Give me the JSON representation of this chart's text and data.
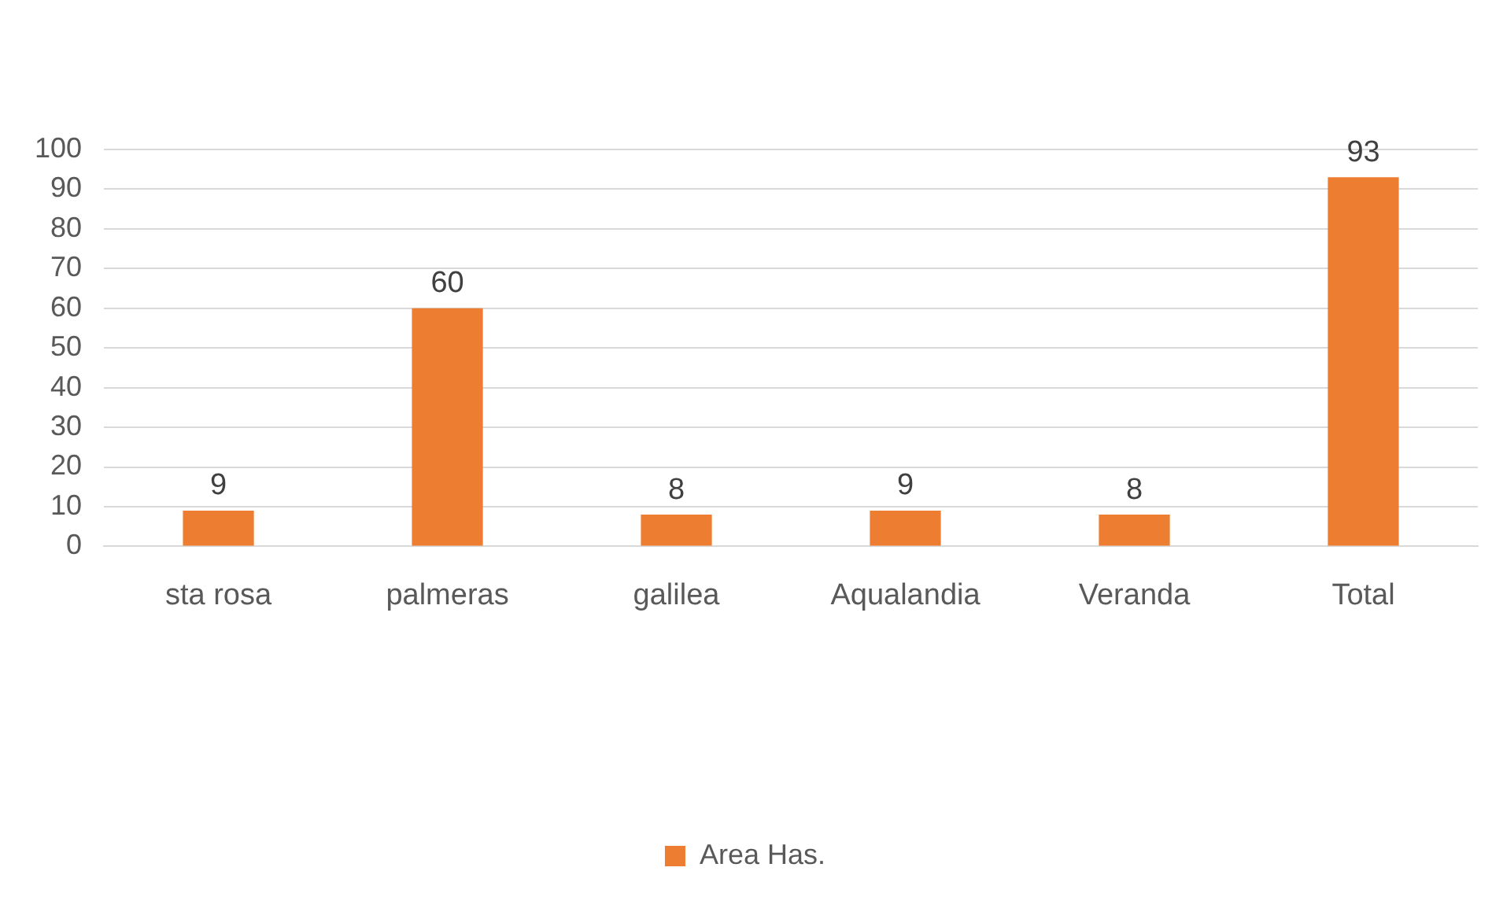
{
  "chart_data": {
    "type": "bar",
    "categories": [
      "sta rosa",
      "palmeras",
      "galilea",
      "Aqualandia",
      "Veranda",
      "Total"
    ],
    "series": [
      {
        "name": "Area Has.",
        "color": "#ed7d31",
        "values": [
          9,
          60,
          8,
          9,
          8,
          93
        ]
      }
    ],
    "ylim": [
      0,
      100
    ],
    "yticks": [
      0,
      10,
      20,
      30,
      40,
      50,
      60,
      70,
      80,
      90,
      100
    ],
    "grid": "y",
    "legend": "bottom",
    "data_labels": true
  }
}
